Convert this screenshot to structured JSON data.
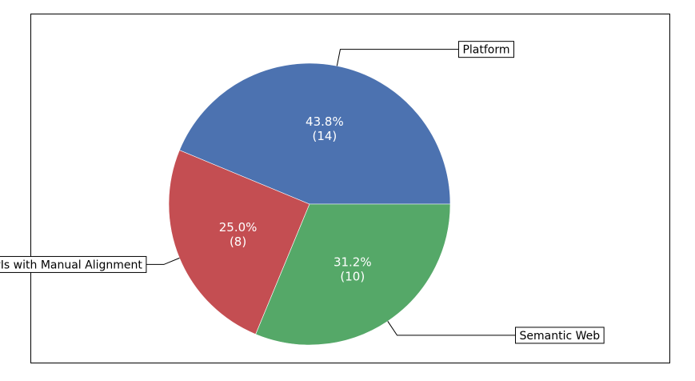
{
  "chart_data": {
    "type": "pie",
    "title": "",
    "categories": [
      "Platform",
      "APIs with Manual Alignment",
      "Semantic Web"
    ],
    "values": [
      14,
      8,
      10
    ],
    "percent_labels": [
      "43.8%",
      "25.0%",
      "31.2%"
    ],
    "count_labels": [
      "(14)",
      "(8)",
      "(10)"
    ],
    "colors": [
      "#4c72b0",
      "#c44e52",
      "#55a868"
    ],
    "start_angle_deg": 0,
    "direction": "counterclockwise",
    "legend": "callout labels with leader lines"
  }
}
